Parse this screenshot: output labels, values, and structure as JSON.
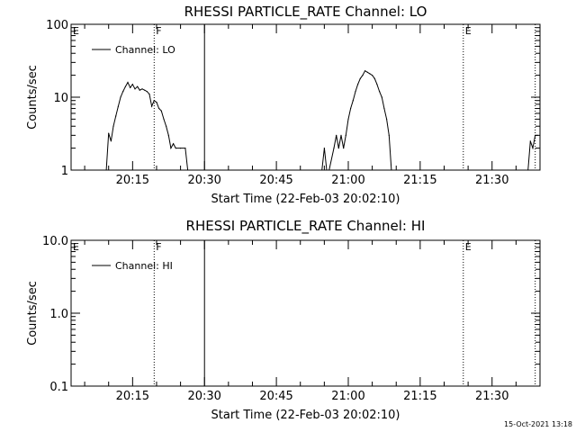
{
  "footer_timestamp": "15-Oct-2021 13:18",
  "chart_data": [
    {
      "type": "line",
      "title": "RHESSI PARTICLE_RATE Channel: LO",
      "xlabel": "Start Time (22-Feb-03 20:02:10)",
      "ylabel": "Counts/sec",
      "yscale": "log",
      "ylim": [
        1,
        100
      ],
      "y_ticks": [
        1,
        10,
        100
      ],
      "y_tick_labels": [
        "1",
        "10",
        "100"
      ],
      "xlim": [
        "20:02:10",
        "21:40:00"
      ],
      "x_ticks": [
        "20:15",
        "20:30",
        "20:45",
        "21:00",
        "21:15",
        "21:30"
      ],
      "legend": {
        "entries": [
          "Channel: LO"
        ],
        "position": "top-left"
      },
      "markers": [
        {
          "label": "E",
          "time": "20:02:10",
          "style": "none"
        },
        {
          "label": "F",
          "time": "20:19:30",
          "style": "dotted"
        },
        {
          "label": "",
          "time": "20:30:00",
          "style": "solid"
        },
        {
          "label": "E",
          "time": "21:24:00",
          "style": "dotted"
        },
        {
          "label": "",
          "time": "21:39:00",
          "style": "dotted"
        }
      ],
      "series": [
        {
          "name": "Channel: LO",
          "segments": [
            [
              [
                "20:09:30",
                1.0
              ],
              [
                "20:10:00",
                3.2
              ],
              [
                "20:10:30",
                2.5
              ],
              [
                "20:11:00",
                4.0
              ],
              [
                "20:11:30",
                5.5
              ],
              [
                "20:12:00",
                7.5
              ],
              [
                "20:12:30",
                10.0
              ],
              [
                "20:13:00",
                12.0
              ],
              [
                "20:13:30",
                14.0
              ],
              [
                "20:14:00",
                16.0
              ],
              [
                "20:14:30",
                13.5
              ],
              [
                "20:15:00",
                15.0
              ],
              [
                "20:15:30",
                13.0
              ],
              [
                "20:16:00",
                14.0
              ],
              [
                "20:16:30",
                12.5
              ],
              [
                "20:17:00",
                13.0
              ],
              [
                "20:17:30",
                12.5
              ],
              [
                "20:18:00",
                12.0
              ],
              [
                "20:18:30",
                11.0
              ],
              [
                "20:19:00",
                7.5
              ],
              [
                "20:19:30",
                9.0
              ],
              [
                "20:20:00",
                8.5
              ],
              [
                "20:20:30",
                7.0
              ],
              [
                "20:21:00",
                6.5
              ],
              [
                "20:21:30",
                5.0
              ],
              [
                "20:22:00",
                4.0
              ],
              [
                "20:22:30",
                3.0
              ],
              [
                "20:23:00",
                2.0
              ],
              [
                "20:23:30",
                2.3
              ],
              [
                "20:24:00",
                2.0
              ],
              [
                "20:25:00",
                2.0
              ],
              [
                "20:26:00",
                2.0
              ],
              [
                "20:26:30",
                1.0
              ]
            ],
            [
              [
                "20:54:30",
                1.0
              ],
              [
                "20:55:00",
                2.0
              ],
              [
                "20:55:30",
                1.0
              ],
              [
                "20:56:00",
                1.0
              ],
              [
                "20:57:00",
                2.0
              ],
              [
                "20:57:30",
                3.0
              ],
              [
                "20:58:00",
                2.0
              ],
              [
                "20:58:30",
                3.0
              ],
              [
                "20:59:00",
                2.0
              ],
              [
                "20:59:30",
                3.0
              ],
              [
                "21:00:00",
                5.0
              ],
              [
                "21:00:30",
                7.0
              ],
              [
                "21:01:00",
                9.0
              ],
              [
                "21:01:30",
                12.0
              ],
              [
                "21:02:00",
                15.0
              ],
              [
                "21:02:30",
                18.0
              ],
              [
                "21:03:00",
                20.0
              ],
              [
                "21:03:30",
                23.0
              ],
              [
                "21:04:00",
                22.0
              ],
              [
                "21:04:30",
                21.0
              ],
              [
                "21:05:00",
                20.0
              ],
              [
                "21:05:30",
                18.0
              ],
              [
                "21:06:00",
                15.0
              ],
              [
                "21:06:30",
                12.0
              ],
              [
                "21:07:00",
                10.0
              ],
              [
                "21:07:30",
                7.0
              ],
              [
                "21:08:00",
                5.0
              ],
              [
                "21:08:30",
                3.0
              ],
              [
                "21:09:00",
                1.0
              ]
            ],
            [
              [
                "21:37:30",
                1.0
              ],
              [
                "21:38:00",
                2.5
              ],
              [
                "21:38:30",
                2.0
              ],
              [
                "21:39:00",
                3.0
              ],
              [
                "21:39:30",
                3.0
              ]
            ]
          ]
        }
      ]
    },
    {
      "type": "line",
      "title": "RHESSI PARTICLE_RATE Channel: HI",
      "xlabel": "Start Time (22-Feb-03 20:02:10)",
      "ylabel": "Counts/sec",
      "yscale": "log",
      "ylim": [
        0.1,
        10
      ],
      "y_ticks": [
        0.1,
        1,
        10
      ],
      "y_tick_labels": [
        "0.1",
        "1.0",
        "10.0"
      ],
      "xlim": [
        "20:02:10",
        "21:40:00"
      ],
      "x_ticks": [
        "20:15",
        "20:30",
        "20:45",
        "21:00",
        "21:15",
        "21:30"
      ],
      "legend": {
        "entries": [
          "Channel: HI"
        ],
        "position": "top-left"
      },
      "markers": [
        {
          "label": "E",
          "time": "20:02:10",
          "style": "none"
        },
        {
          "label": "F",
          "time": "20:19:30",
          "style": "dotted"
        },
        {
          "label": "",
          "time": "20:30:00",
          "style": "solid"
        },
        {
          "label": "E",
          "time": "21:24:00",
          "style": "dotted"
        },
        {
          "label": "",
          "time": "21:39:00",
          "style": "dotted"
        }
      ],
      "series": [
        {
          "name": "Channel: HI",
          "segments": []
        }
      ]
    }
  ]
}
